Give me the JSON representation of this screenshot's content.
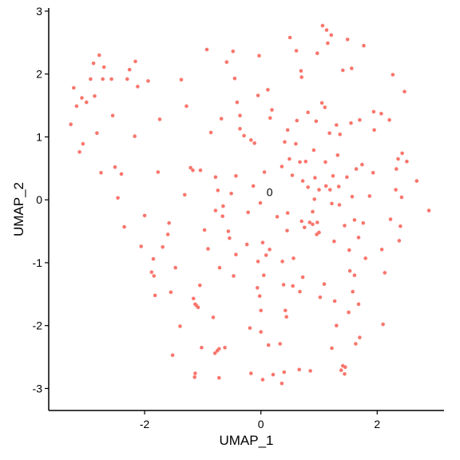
{
  "chart_data": {
    "type": "scatter",
    "xlabel": "UMAP_1",
    "ylabel": "UMAP_2",
    "xlim": [
      -3.65,
      3.15
    ],
    "ylim": [
      -3.35,
      3.05
    ],
    "x_ticks": [
      {
        "value": -2,
        "label": "-2"
      },
      {
        "value": 0,
        "label": "0"
      },
      {
        "value": 2,
        "label": "2"
      }
    ],
    "y_ticks": [
      {
        "value": 3,
        "label": "3"
      },
      {
        "value": 2,
        "label": "2"
      },
      {
        "value": 1,
        "label": "1"
      },
      {
        "value": 0,
        "label": "0"
      },
      {
        "value": -1,
        "label": "-1"
      },
      {
        "value": -2,
        "label": "-2"
      },
      {
        "value": -3,
        "label": "-3"
      }
    ],
    "grid": false,
    "legend": "none",
    "annotations": [
      {
        "text": "0",
        "x": 0.15,
        "y": 0.12
      }
    ],
    "series": [
      {
        "color": "#F8766D",
        "points": [
          [
            -3.27,
            1.2
          ],
          [
            -3.22,
            1.78
          ],
          [
            -3.17,
            1.49
          ],
          [
            -3.12,
            0.76
          ],
          [
            -3.08,
            1.62
          ],
          [
            -3.06,
            0.89
          ],
          [
            -3.0,
            1.55
          ],
          [
            -2.93,
            1.92
          ],
          [
            -2.88,
            2.17
          ],
          [
            -2.86,
            1.65
          ],
          [
            -2.82,
            1.06
          ],
          [
            -2.78,
            2.3
          ],
          [
            -2.75,
            0.43
          ],
          [
            -2.72,
            1.92
          ],
          [
            -2.7,
            2.11
          ],
          [
            -2.57,
            1.92
          ],
          [
            -2.55,
            1.34
          ],
          [
            -2.51,
            0.52
          ],
          [
            -2.46,
            0.03
          ],
          [
            -2.4,
            0.41
          ],
          [
            -2.35,
            -0.43
          ],
          [
            -2.3,
            1.92
          ],
          [
            -2.26,
            2.07
          ],
          [
            -2.17,
            1.01
          ],
          [
            -2.16,
            2.2
          ],
          [
            -2.12,
            1.8
          ],
          [
            -2.06,
            -0.74
          ],
          [
            -2.0,
            -0.25
          ],
          [
            -1.94,
            1.89
          ],
          [
            -1.88,
            -1.15
          ],
          [
            -1.85,
            -0.94
          ],
          [
            -1.84,
            -1.21
          ],
          [
            -1.82,
            -1.52
          ],
          [
            -1.77,
            0.44
          ],
          [
            -1.74,
            1.28
          ],
          [
            -1.69,
            -0.75
          ],
          [
            -1.6,
            -0.55
          ],
          [
            -1.58,
            -0.37
          ],
          [
            -1.55,
            -1.47
          ],
          [
            -1.52,
            -2.47
          ],
          [
            -1.47,
            -1.08
          ],
          [
            -1.39,
            -2.01
          ],
          [
            -1.37,
            1.91
          ],
          [
            -1.31,
            0.08
          ],
          [
            -1.28,
            1.49
          ],
          [
            -1.21,
            0.51
          ],
          [
            -1.17,
            0.47
          ],
          [
            -1.16,
            -1.57
          ],
          [
            -1.14,
            -2.82
          ],
          [
            -1.13,
            -2.76
          ],
          [
            -1.13,
            -1.66
          ],
          [
            -1.11,
            -1.68
          ],
          [
            -1.08,
            -1.71
          ],
          [
            -1.05,
            -1.36
          ],
          [
            -1.04,
            0.47
          ],
          [
            -1.02,
            -2.35
          ],
          [
            -0.97,
            -0.48
          ],
          [
            -0.93,
            2.39
          ],
          [
            -0.91,
            -0.78
          ],
          [
            -0.86,
            1.07
          ],
          [
            -0.82,
            -1.87
          ],
          [
            -0.79,
            -2.44
          ],
          [
            -0.78,
            0.36
          ],
          [
            -0.78,
            -0.17
          ],
          [
            -0.75,
            -2.4
          ],
          [
            -0.74,
            0.15
          ],
          [
            -0.72,
            -2.37
          ],
          [
            -0.72,
            -2.83
          ],
          [
            -0.71,
            -1.08
          ],
          [
            -0.68,
            1.29
          ],
          [
            -0.66,
            -0.26
          ],
          [
            -0.65,
            -0.1
          ],
          [
            -0.62,
            -2.35
          ],
          [
            -0.59,
            2.19
          ],
          [
            -0.56,
            -0.5
          ],
          [
            -0.54,
            -0.61
          ],
          [
            -0.51,
            0.1
          ],
          [
            -0.48,
            2.36
          ],
          [
            -0.47,
            -1.21
          ],
          [
            -0.45,
            1.93
          ],
          [
            -0.43,
            -0.87
          ],
          [
            -0.43,
            0.38
          ],
          [
            -0.41,
            1.55
          ],
          [
            -0.36,
            1.34
          ],
          [
            -0.36,
            1.13
          ],
          [
            -0.29,
            1.02
          ],
          [
            -0.24,
            -0.71
          ],
          [
            -0.22,
            -0.2
          ],
          [
            -0.19,
            -2.04
          ],
          [
            -0.17,
            0.95
          ],
          [
            -0.17,
            -2.76
          ],
          [
            -0.13,
            0.22
          ],
          [
            -0.11,
            0.9
          ],
          [
            -0.06,
            -1.4
          ],
          [
            -0.05,
            1.66
          ],
          [
            -0.05,
            -0.98
          ],
          [
            -0.03,
            2.29
          ],
          [
            -0.02,
            -1.53
          ],
          [
            -0.01,
            -0.05
          ],
          [
            -0.0,
            -1.76
          ],
          [
            0.0,
            -2.1
          ],
          [
            0.03,
            -2.86
          ],
          [
            0.03,
            -0.68
          ],
          [
            0.05,
            -1.2
          ],
          [
            0.06,
            0.44
          ],
          [
            0.09,
            -0.88
          ],
          [
            0.12,
            1.75
          ],
          [
            0.13,
            -2.31
          ],
          [
            0.15,
            -0.79
          ],
          [
            0.16,
            1.3
          ],
          [
            0.19,
            1.43
          ],
          [
            0.21,
            -2.78
          ],
          [
            0.28,
            -0.27
          ],
          [
            0.33,
            -2.29
          ],
          [
            0.36,
            -2.92
          ],
          [
            0.36,
            0.53
          ],
          [
            0.37,
            -0.98
          ],
          [
            0.39,
            -1.35
          ],
          [
            0.4,
            -2.74
          ],
          [
            0.41,
            0.92
          ],
          [
            0.42,
            -1.76
          ],
          [
            0.44,
            -1.86
          ],
          [
            0.45,
            -0.49
          ],
          [
            0.46,
            -0.21
          ],
          [
            0.46,
            1.11
          ],
          [
            0.49,
            0.65
          ],
          [
            0.5,
            2.58
          ],
          [
            0.54,
            0.39
          ],
          [
            0.55,
            -1.37
          ],
          [
            0.56,
            -0.93
          ],
          [
            0.6,
            0.89
          ],
          [
            0.61,
            2.37
          ],
          [
            0.62,
            1.26
          ],
          [
            0.66,
            -2.7
          ],
          [
            0.67,
            0.6
          ],
          [
            0.67,
            -1.46
          ],
          [
            0.69,
            2.05
          ],
          [
            0.7,
            1.95
          ],
          [
            0.7,
            -0.34
          ],
          [
            0.72,
            -1.23
          ],
          [
            0.72,
            0.3
          ],
          [
            0.75,
            -0.44
          ],
          [
            0.77,
            0.61
          ],
          [
            0.81,
            1.39
          ],
          [
            0.81,
            0.2
          ],
          [
            0.84,
            -0.36
          ],
          [
            0.85,
            -2.72
          ],
          [
            0.89,
            -0.19
          ],
          [
            0.89,
            -0.39
          ],
          [
            0.91,
            0.79
          ],
          [
            0.92,
            0.01
          ],
          [
            0.93,
            0.35
          ],
          [
            0.95,
            1.25
          ],
          [
            0.96,
            -0.55
          ],
          [
            0.97,
            -0.36
          ],
          [
            0.97,
            2.33
          ],
          [
            1.0,
            -0.52
          ],
          [
            1.0,
            0.16
          ],
          [
            1.02,
            -1.55
          ],
          [
            1.05,
            1.54
          ],
          [
            1.06,
            2.77
          ],
          [
            1.09,
            -1.34
          ],
          [
            1.1,
            1.47
          ],
          [
            1.11,
            0.6
          ],
          [
            1.12,
            0.22
          ],
          [
            1.13,
            2.7
          ],
          [
            1.15,
            2.49
          ],
          [
            1.18,
            1.06
          ],
          [
            1.19,
            0.16
          ],
          [
            1.21,
            2.62
          ],
          [
            1.22,
            -0.06
          ],
          [
            1.22,
            -2.36
          ],
          [
            1.24,
            0.38
          ],
          [
            1.26,
            -0.66
          ],
          [
            1.27,
            -1.61
          ],
          [
            1.3,
            1.19
          ],
          [
            1.3,
            -2.0
          ],
          [
            1.32,
            0.71
          ],
          [
            1.34,
            0.21
          ],
          [
            1.35,
            -0.08
          ],
          [
            1.36,
            1.04
          ],
          [
            1.38,
            -2.71
          ],
          [
            1.41,
            2.06
          ],
          [
            1.41,
            -2.64
          ],
          [
            1.44,
            -0.41
          ],
          [
            1.44,
            -2.77
          ],
          [
            1.45,
            -2.66
          ],
          [
            1.48,
            0.36
          ],
          [
            1.49,
            2.55
          ],
          [
            1.51,
            -1.79
          ],
          [
            1.52,
            -0.8
          ],
          [
            1.53,
            -1.13
          ],
          [
            1.55,
            1.22
          ],
          [
            1.56,
            2.09
          ],
          [
            1.57,
            0.05
          ],
          [
            1.58,
            -1.46
          ],
          [
            1.61,
            -1.2
          ],
          [
            1.61,
            -0.32
          ],
          [
            1.63,
            -2.29
          ],
          [
            1.64,
            0.49
          ],
          [
            1.68,
            -1.66
          ],
          [
            1.68,
            -0.6
          ],
          [
            1.7,
            -2.19
          ],
          [
            1.7,
            1.27
          ],
          [
            1.74,
            0.56
          ],
          [
            1.76,
            -0.37
          ],
          [
            1.77,
            2.45
          ],
          [
            1.8,
            -0.93
          ],
          [
            1.87,
            0.06
          ],
          [
            1.93,
            0.43
          ],
          [
            1.94,
            1.4
          ],
          [
            1.95,
            1.11
          ],
          [
            2.07,
            1.37
          ],
          [
            2.08,
            -0.79
          ],
          [
            2.1,
            -1.98
          ],
          [
            2.13,
            -1.16
          ],
          [
            2.21,
            1.27
          ],
          [
            2.23,
            -0.31
          ],
          [
            2.27,
            1.99
          ],
          [
            2.32,
            0.16
          ],
          [
            2.33,
            0.49
          ],
          [
            2.36,
            0.65
          ],
          [
            2.38,
            -0.65
          ],
          [
            2.4,
            -0.42
          ],
          [
            2.42,
            0.04
          ],
          [
            2.43,
            0.74
          ],
          [
            2.47,
            1.72
          ],
          [
            2.51,
            0.61
          ],
          [
            2.68,
            0.3
          ],
          [
            2.89,
            -0.17
          ]
        ]
      }
    ]
  }
}
